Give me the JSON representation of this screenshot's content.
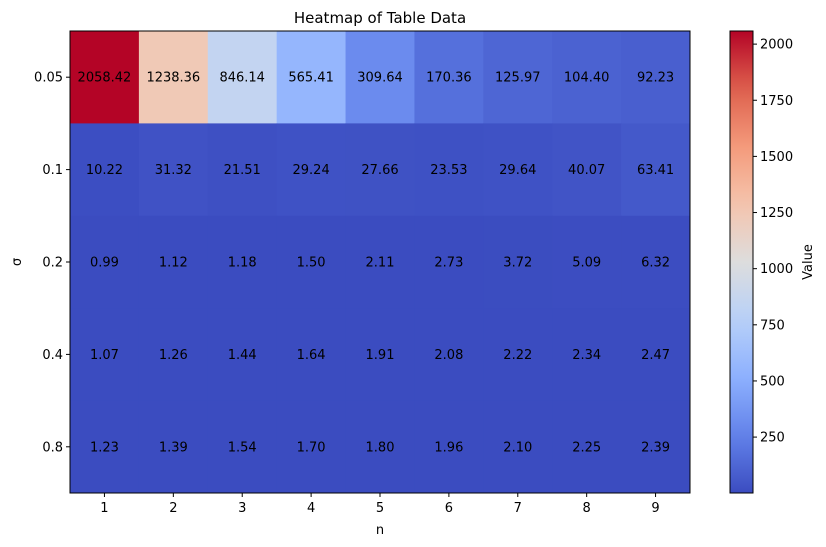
{
  "chart_data": {
    "type": "heatmap",
    "title": "Heatmap of Table Data",
    "xlabel": "n",
    "ylabel": "σ",
    "x_categories": [
      "1",
      "2",
      "3",
      "4",
      "5",
      "6",
      "7",
      "8",
      "9"
    ],
    "y_categories": [
      "0.05",
      "0.1",
      "0.2",
      "0.4",
      "0.8"
    ],
    "values": [
      [
        2058.42,
        1238.36,
        846.14,
        565.41,
        309.64,
        170.36,
        125.97,
        104.4,
        92.23
      ],
      [
        10.22,
        31.32,
        21.51,
        29.24,
        27.66,
        23.53,
        29.64,
        40.07,
        63.41
      ],
      [
        0.99,
        1.12,
        1.18,
        1.5,
        2.11,
        2.73,
        3.72,
        5.09,
        6.32
      ],
      [
        1.07,
        1.26,
        1.44,
        1.64,
        1.91,
        2.08,
        2.22,
        2.34,
        2.47
      ],
      [
        1.23,
        1.39,
        1.54,
        1.7,
        1.8,
        1.96,
        2.1,
        2.25,
        2.39
      ]
    ],
    "value_labels": [
      [
        "2058.42",
        "1238.36",
        "846.14",
        "565.41",
        "309.64",
        "170.36",
        "125.97",
        "104.40",
        "92.23"
      ],
      [
        "10.22",
        "31.32",
        "21.51",
        "29.24",
        "27.66",
        "23.53",
        "29.64",
        "40.07",
        "63.41"
      ],
      [
        "0.99",
        "1.12",
        "1.18",
        "1.50",
        "2.11",
        "2.73",
        "3.72",
        "5.09",
        "6.32"
      ],
      [
        "1.07",
        "1.26",
        "1.44",
        "1.64",
        "1.91",
        "2.08",
        "2.22",
        "2.34",
        "2.47"
      ],
      [
        "1.23",
        "1.39",
        "1.54",
        "1.70",
        "1.80",
        "1.96",
        "2.10",
        "2.25",
        "2.39"
      ]
    ],
    "colormap": "coolwarm",
    "colorbar": {
      "label": "Value",
      "range": [
        0.99,
        2058.42
      ],
      "ticks": [
        "250",
        "500",
        "750",
        "1000",
        "1250",
        "1500",
        "1750",
        "2000"
      ]
    }
  }
}
